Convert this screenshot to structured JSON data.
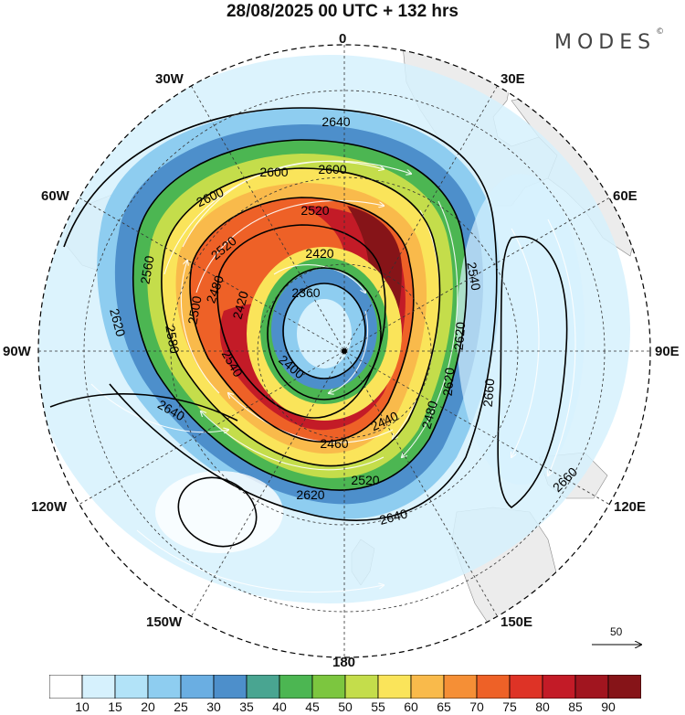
{
  "title": "28/08/2025  00 UTC  + 132 hrs",
  "brand": "MODES",
  "brand_mark": "©",
  "longitude_labels": {
    "lon_0": "0",
    "lon_30e": "30E",
    "lon_60e": "60E",
    "lon_90e": "90E",
    "lon_120e": "120E",
    "lon_150e": "150E",
    "lon_180": "180",
    "lon_150w": "150W",
    "lon_120w": "120W",
    "lon_90w": "90W",
    "lon_60w": "60W",
    "lon_30w": "30W"
  },
  "contour_labels": [
    "2640",
    "2600",
    "2600",
    "2600",
    "2520",
    "2520",
    "2560",
    "2540",
    "2420",
    "2480",
    "2360",
    "2420",
    "2500",
    "2580",
    "2620",
    "2620",
    "2400",
    "2440",
    "2460",
    "2480",
    "2540",
    "2520",
    "2620",
    "2640",
    "2660",
    "2660",
    "2640",
    "2620"
  ],
  "reference_vector": {
    "label": "50",
    "icon": "arrow-right-icon"
  },
  "colorbar": {
    "labels": [
      "10",
      "15",
      "20",
      "25",
      "30",
      "35",
      "40",
      "45",
      "50",
      "55",
      "60",
      "65",
      "70",
      "75",
      "80",
      "85",
      "90"
    ],
    "colors": [
      "#ffffff",
      "#d6f1fd",
      "#b2e3f8",
      "#8ecdf0",
      "#6aaee2",
      "#4d8fcb",
      "#49a591",
      "#4cb652",
      "#7cc63f",
      "#c4dd4b",
      "#fae45a",
      "#f9ba4b",
      "#f58f36",
      "#ee6127",
      "#de3326",
      "#c31b27",
      "#a1151f",
      "#861418"
    ]
  },
  "palette": {
    "land": "#ececec",
    "ocean": "#ffffff",
    "contour": "#000000",
    "vector": "#ffffff"
  }
}
